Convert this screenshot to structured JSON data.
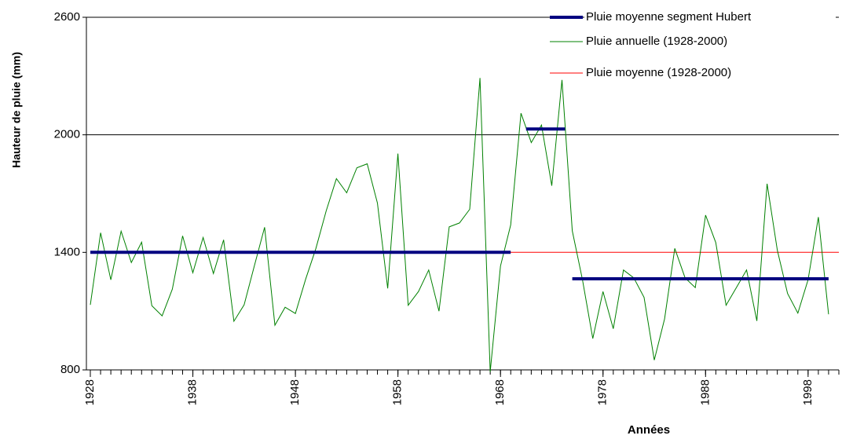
{
  "chart_data": {
    "type": "line",
    "y_label": "Hauteur de pluie (mm)",
    "x_label": "Années",
    "xlim": [
      1928,
      2001
    ],
    "xticks": [
      1928,
      1938,
      1948,
      1958,
      1968,
      1978,
      1988,
      1998
    ],
    "ylim": [
      800,
      2600
    ],
    "yticks": [
      800,
      1400,
      2000,
      2600
    ],
    "grid_values": [
      2000,
      2600
    ],
    "series": [
      {
        "name": "Pluie moyenne segment Hubert",
        "color": "#000080",
        "segments": [
          {
            "x": [
              1928,
              1969
            ],
            "values": [
              1400,
              1400
            ]
          },
          {
            "x": [
              1970.5,
              1974.3
            ],
            "values": [
              2030,
              2030
            ]
          },
          {
            "x": [
              1975,
              2000
            ],
            "values": [
              1265,
              1265
            ]
          }
        ]
      },
      {
        "name": "Pluie annuelle (1928-2000)",
        "color": "#008000",
        "x": [
          1928,
          1929,
          1930,
          1931,
          1932,
          1933,
          1934,
          1935,
          1936,
          1937,
          1938,
          1939,
          1940,
          1941,
          1942,
          1943,
          1944,
          1945,
          1946,
          1947,
          1948,
          1949,
          1950,
          1951,
          1952,
          1953,
          1954,
          1955,
          1956,
          1957,
          1958,
          1959,
          1960,
          1961,
          1962,
          1963,
          1964,
          1965,
          1966,
          1967,
          1968,
          1969,
          1970,
          1971,
          1972,
          1973,
          1974,
          1975,
          1976,
          1977,
          1978,
          1979,
          1980,
          1981,
          1982,
          1983,
          1984,
          1985,
          1986,
          1987,
          1988,
          1989,
          1990,
          1991,
          1992,
          1993,
          1994,
          1995,
          1996,
          1997,
          1998,
          1999,
          2000
        ],
        "values": [
          1132,
          1500,
          1260,
          1508,
          1348,
          1452,
          1128,
          1076,
          1212,
          1484,
          1296,
          1476,
          1292,
          1464,
          1048,
          1132,
          1332,
          1528,
          1028,
          1120,
          1088,
          1264,
          1420,
          1612,
          1776,
          1704,
          1832,
          1852,
          1652,
          1216,
          1904,
          1130,
          1200,
          1310,
          1100,
          1530,
          1550,
          1620,
          2290,
          790,
          1330,
          1540,
          2110,
          1960,
          2050,
          1740,
          2280,
          1510,
          1260,
          960,
          1200,
          1010,
          1310,
          1270,
          1170,
          850,
          1060,
          1420,
          1270,
          1220,
          1590,
          1450,
          1130,
          1220,
          1310,
          1050,
          1750,
          1410,
          1190,
          1090,
          1260,
          1580,
          1084
        ]
      },
      {
        "name": "Pluie moyenne (1928-2000)",
        "color": "#ff0000",
        "x": [
          1928,
          2001
        ],
        "values": [
          1400,
          1400
        ]
      }
    ]
  }
}
